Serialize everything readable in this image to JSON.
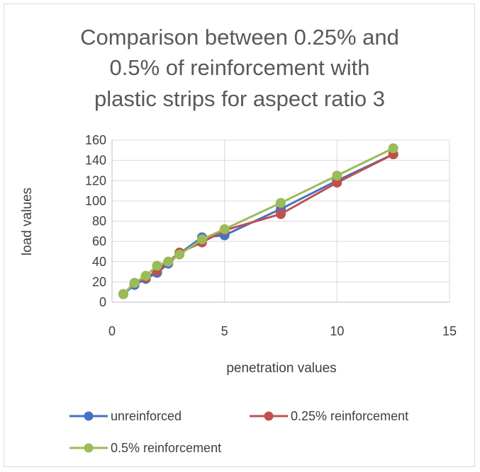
{
  "chart_data": {
    "type": "line",
    "title_lines": [
      "Comparison between 0.25% and",
      "0.5% of reinforcement with",
      "plastic strips for aspect ratio 3"
    ],
    "xlabel": "penetration values",
    "ylabel": "load values",
    "xlim": [
      0,
      15
    ],
    "ylim": [
      0,
      160
    ],
    "x_ticks": [
      0,
      5,
      10,
      15
    ],
    "y_ticks": [
      0,
      20,
      40,
      60,
      80,
      100,
      120,
      140,
      160
    ],
    "grid": "major gridlines on both axes",
    "legend_position": "bottom",
    "series": [
      {
        "name": "unreinforced",
        "color": "#4472C4",
        "x": [
          0.5,
          1,
          1.5,
          2,
          2.5,
          3,
          4,
          5,
          7.5,
          10,
          12.5
        ],
        "y": [
          8,
          17,
          23,
          29,
          38,
          48,
          64,
          66,
          92,
          120,
          146
        ]
      },
      {
        "name": "0.25% reinforcement",
        "color": "#C0504D",
        "x": [
          0.5,
          1,
          1.5,
          2,
          2.5,
          3,
          4,
          5,
          7.5,
          10,
          12.5
        ],
        "y": [
          8,
          19,
          24,
          31,
          40,
          49,
          59,
          71,
          87,
          118,
          146
        ]
      },
      {
        "name": "0.5% reinforcement",
        "color": "#9BBB59",
        "x": [
          0.5,
          1,
          1.5,
          2,
          2.5,
          3,
          4,
          5,
          7.5,
          10,
          12.5
        ],
        "y": [
          8,
          19,
          26,
          36,
          40,
          47,
          62,
          72,
          98,
          125,
          152
        ]
      }
    ]
  }
}
